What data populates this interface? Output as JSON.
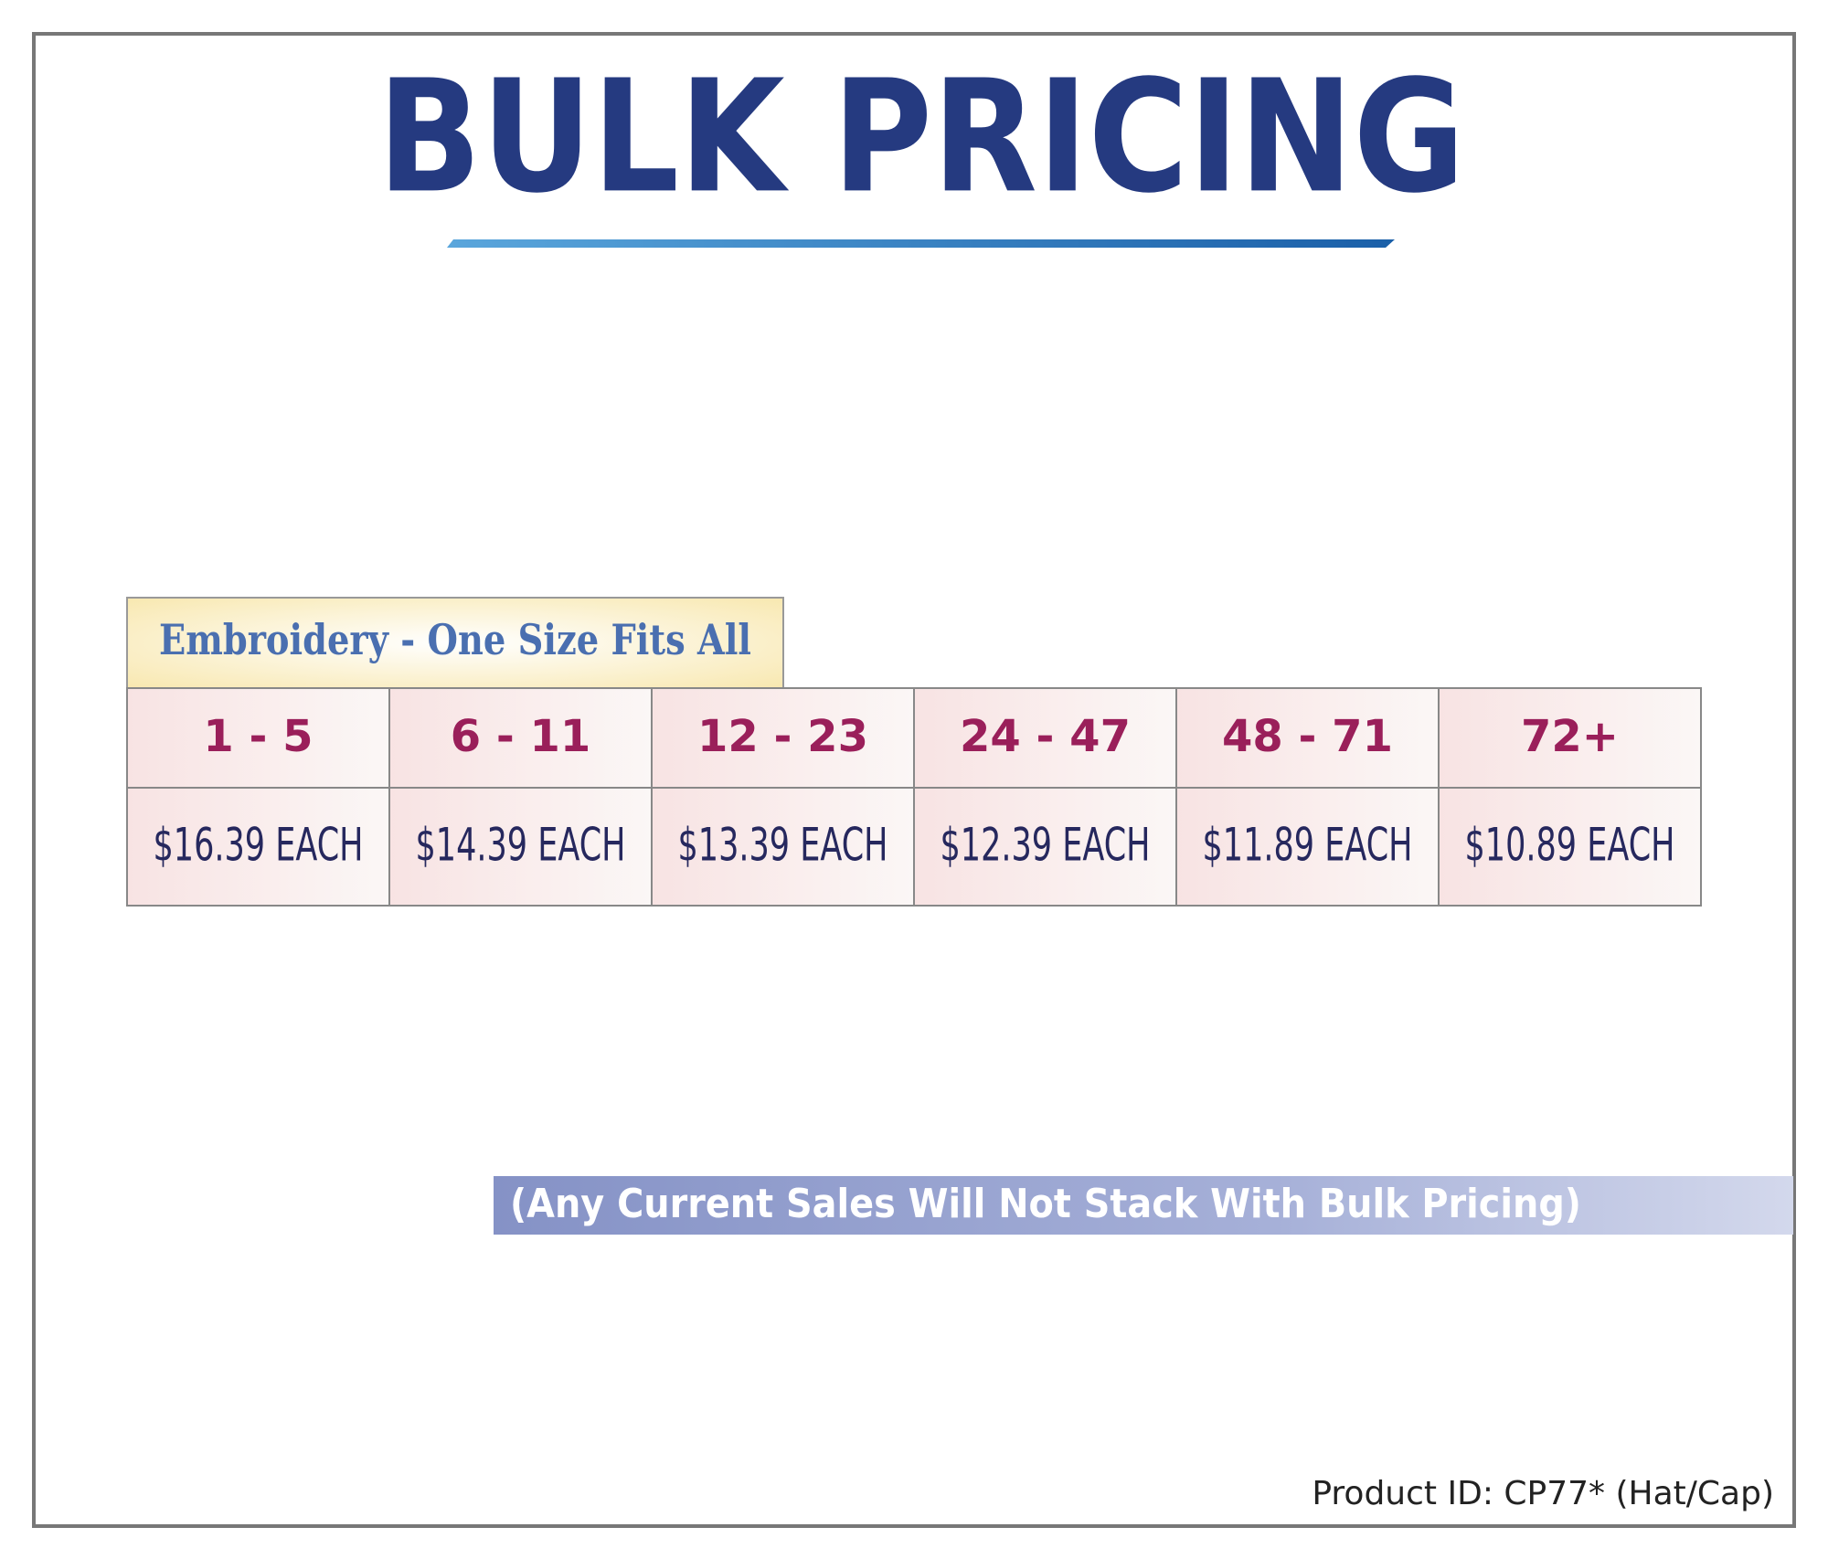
{
  "header": {
    "title": "BULK PRICING"
  },
  "table": {
    "caption": "Embroidery - One Size Fits All",
    "headers": [
      "1 - 5",
      "6 - 11",
      "12 - 23",
      "24 - 47",
      "48 - 71",
      "72+"
    ],
    "rows": [
      [
        "$16.39 EACH",
        "$14.39 EACH",
        "$13.39 EACH",
        "$12.39 EACH",
        "$11.89 EACH",
        "$10.89 EACH"
      ]
    ]
  },
  "note": "(Any Current Sales Will Not Stack With Bulk Pricing)",
  "footer": {
    "product_id": "Product ID: CP77* (Hat/Cap)"
  }
}
